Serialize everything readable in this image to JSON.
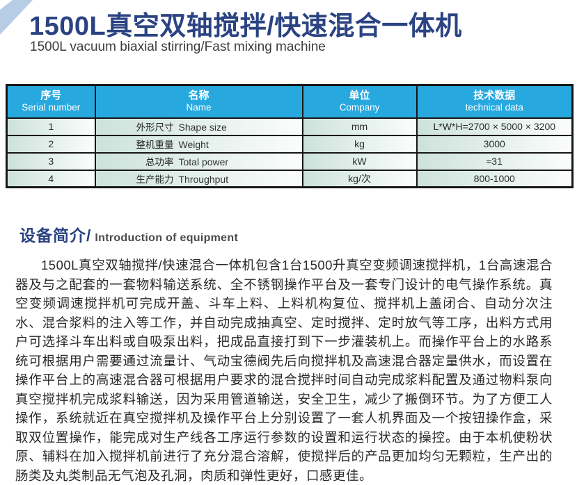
{
  "page": {
    "title_zh": "1500L真空双轴搅拌/快速混合一体机",
    "title_en": "1500L vacuum biaxial stirring/Fast mixing machine"
  },
  "colors": {
    "title_navy": "#2b4382",
    "table_header_cyan": "#27a9e0",
    "corner_ribbon_blue": "#b7cce5",
    "cell_gradient_start": "#cde2dc",
    "border_black": "#161616"
  },
  "spec_table": {
    "columns": [
      {
        "zh": "序号",
        "en": "Serial number"
      },
      {
        "zh": "名称",
        "en": "Name"
      },
      {
        "zh": "单位",
        "en": "Company"
      },
      {
        "zh": "技术数据",
        "en": "technical data"
      }
    ],
    "rows": [
      {
        "no": "1",
        "name_zh": "外形尺寸",
        "name_en": "Shape size",
        "unit": "mm",
        "value": "L*W*H=2700 × 5000 × 3200"
      },
      {
        "no": "2",
        "name_zh": "整机重量",
        "name_en": "Weight",
        "unit": "kg",
        "value": "3000"
      },
      {
        "no": "3",
        "name_zh": "总功率",
        "name_en": "Total power",
        "unit": "kW",
        "value": "≈31"
      },
      {
        "no": "4",
        "name_zh": "生产能力",
        "name_en": "Throughput",
        "unit": "kg/次",
        "value": "800-1000"
      }
    ]
  },
  "intro": {
    "heading_zh": "设备简介/",
    "heading_en": "Introduction of equipment",
    "body": "1500L真空双轴搅拌/快速混合一体机包含1台1500升真空变频调速搅拌机，1台高速混合器及与之配套的一套物料输送系统、全不锈钢操作平台及一套专门设计的电气操作系统。真空变频调速搅拌机可完成开盖、斗车上料、上料机构复位、搅拌机上盖闭合、自动分次注水、混合浆料的注入等工作，并自动完成抽真空、定时搅拌、定时放气等工序，出料方式用户可选择斗车出料或自吸泵出料，把成品直接打到下一步灌装机上。而操作平台上的水路系统可根据用户需要通过流量计、气动宝德阀先后向搅拌机及高速混合器定量供水，而设置在操作平台上的高速混合器可根据用户要求的混合搅拌时间自动完成浆料配置及通过物料泵向真空搅拌机完成浆料输送，因为采用管道输送，安全卫生，减少了搬倒环节。为了方便工人操作，系统就近在真空搅拌机及操作平台上分别设置了一套人机界面及一个按钮操作盒，采取双位置操作，能完成对生产线各工序运行参数的设置和运行状态的操控。由于本机使粉状原、辅料在加入搅拌机前进行了充分混合溶解，使搅拌后的产品更加均匀无颗粒，生产出的肠类及丸类制品无气泡及孔洞，肉质和弹性更好，口感更佳。"
  }
}
